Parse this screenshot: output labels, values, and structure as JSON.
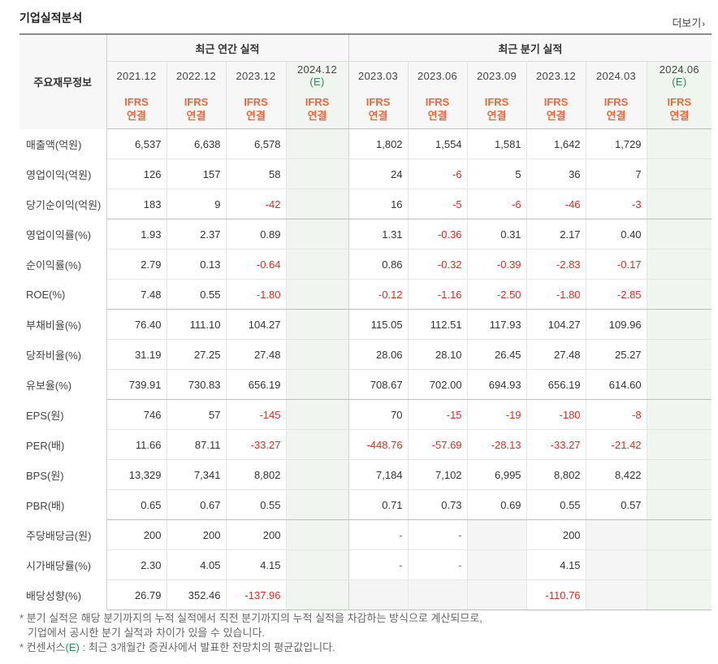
{
  "header": {
    "title": "기업실적분석",
    "more_label": "더보기"
  },
  "table": {
    "row_header_label": "주요재무정보",
    "annual_group_label": "최근 연간 실적",
    "quarter_group_label": "최근 분기 실적",
    "annual_periods": [
      "2021.12",
      "2022.12",
      "2023.12",
      "2024.12"
    ],
    "annual_est_mark": "(E)",
    "quarter_periods": [
      "2023.03",
      "2023.06",
      "2023.09",
      "2023.12",
      "2024.03",
      "2024.06"
    ],
    "quarter_est_mark": "(E)",
    "ifrs_top": "IFRS",
    "ifrs_bottom": "연결",
    "rows": [
      {
        "label": "매출액(억원)",
        "annual": [
          "6,537",
          "6,638",
          "6,578",
          ""
        ],
        "quarter": [
          "1,802",
          "1,554",
          "1,581",
          "1,642",
          "1,729",
          ""
        ]
      },
      {
        "label": "영업이익(억원)",
        "annual": [
          "126",
          "157",
          "58",
          ""
        ],
        "quarter": [
          "24",
          "-6",
          "5",
          "36",
          "7",
          ""
        ]
      },
      {
        "label": "당기순이익(억원)",
        "annual": [
          "183",
          "9",
          "-42",
          ""
        ],
        "quarter": [
          "16",
          "-5",
          "-6",
          "-46",
          "-3",
          ""
        ]
      },
      {
        "label": "영업이익률(%)",
        "annual": [
          "1.93",
          "2.37",
          "0.89",
          ""
        ],
        "quarter": [
          "1.31",
          "-0.36",
          "0.31",
          "2.17",
          "0.40",
          ""
        ]
      },
      {
        "label": "순이익률(%)",
        "annual": [
          "2.79",
          "0.13",
          "-0.64",
          ""
        ],
        "quarter": [
          "0.86",
          "-0.32",
          "-0.39",
          "-2.83",
          "-0.17",
          ""
        ]
      },
      {
        "label": "ROE(%)",
        "annual": [
          "7.48",
          "0.55",
          "-1.80",
          ""
        ],
        "quarter": [
          "-0.12",
          "-1.16",
          "-2.50",
          "-1.80",
          "-2.85",
          ""
        ]
      },
      {
        "label": "부채비율(%)",
        "annual": [
          "76.40",
          "111.10",
          "104.27",
          ""
        ],
        "quarter": [
          "115.05",
          "112.51",
          "117.93",
          "104.27",
          "109.96",
          ""
        ]
      },
      {
        "label": "당좌비율(%)",
        "annual": [
          "31.19",
          "27.25",
          "27.48",
          ""
        ],
        "quarter": [
          "28.06",
          "28.10",
          "26.45",
          "27.48",
          "25.27",
          ""
        ]
      },
      {
        "label": "유보율(%)",
        "annual": [
          "739.91",
          "730.83",
          "656.19",
          ""
        ],
        "quarter": [
          "708.67",
          "702.00",
          "694.93",
          "656.19",
          "614.60",
          ""
        ]
      },
      {
        "label": "EPS(원)",
        "annual": [
          "746",
          "57",
          "-145",
          ""
        ],
        "quarter": [
          "70",
          "-15",
          "-19",
          "-180",
          "-8",
          ""
        ]
      },
      {
        "label": "PER(배)",
        "annual": [
          "11.66",
          "87.11",
          "-33.27",
          ""
        ],
        "quarter": [
          "-448.76",
          "-57.69",
          "-28.13",
          "-33.27",
          "-21.42",
          ""
        ]
      },
      {
        "label": "BPS(원)",
        "annual": [
          "13,329",
          "7,341",
          "8,802",
          ""
        ],
        "quarter": [
          "7,184",
          "7,102",
          "6,995",
          "8,802",
          "8,422",
          ""
        ]
      },
      {
        "label": "PBR(배)",
        "annual": [
          "0.65",
          "0.67",
          "0.55",
          ""
        ],
        "quarter": [
          "0.71",
          "0.73",
          "0.69",
          "0.55",
          "0.57",
          ""
        ]
      },
      {
        "label": "주당배당금(원)",
        "annual": [
          "200",
          "200",
          "200",
          ""
        ],
        "quarter": [
          "-",
          "-",
          "",
          "200",
          "",
          ""
        ]
      },
      {
        "label": "시가배당률(%)",
        "annual": [
          "2.30",
          "4.05",
          "4.15",
          ""
        ],
        "quarter": [
          "-",
          "-",
          "",
          "4.15",
          "",
          ""
        ]
      },
      {
        "label": "배당성향(%)",
        "annual": [
          "26.79",
          "352.46",
          "-137.96",
          ""
        ],
        "quarter": [
          "",
          "",
          "",
          "-110.76",
          "",
          ""
        ]
      }
    ]
  },
  "notes": {
    "line1": "* 분기 실적은 해당 분기까지의 누적 실적에서 직전 분기까지의 누적 실적을 차감하는 방식으로 계산되므로,",
    "line2": "기업에서 공시한 분기 실적과 차이가 있을 수 있습니다.",
    "line3_prefix": "* 컨센서스",
    "line3_mark": "(E)",
    "line3_suffix": " : 최근 3개월간 증권사에서 발표한 전망치의 평균값입니다."
  },
  "colors": {
    "negative": "#e8281f",
    "ifrs": "#f0663a",
    "estimate": "#2e8b57"
  }
}
